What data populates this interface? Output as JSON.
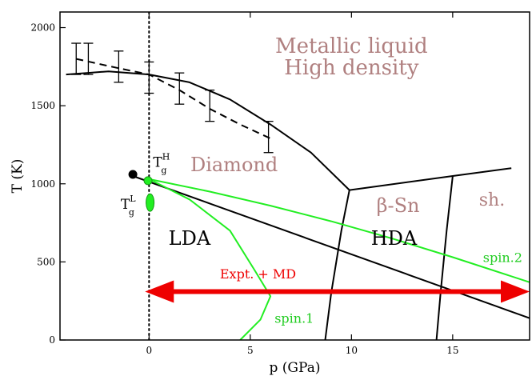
{
  "chart_data": {
    "type": "line",
    "xlabel": "p (GPa)",
    "ylabel": "T (K)",
    "xlim": [
      -4.4,
      18.8
    ],
    "ylim": [
      0,
      2100
    ],
    "x_ticks": [
      0,
      5,
      10,
      15
    ],
    "y_ticks": [
      0,
      500,
      1000,
      1500,
      2000
    ],
    "grid": false,
    "series": [
      {
        "key": "melting_solid",
        "color": "#000000",
        "dash": "solid",
        "points": [
          [
            -4.1,
            1700
          ],
          [
            -3,
            1710
          ],
          [
            -2,
            1720
          ],
          [
            0,
            1700
          ],
          [
            2,
            1650
          ],
          [
            4,
            1540
          ],
          [
            6,
            1380
          ],
          [
            8,
            1200
          ],
          [
            9.9,
            960
          ]
        ]
      },
      {
        "key": "melting_dashed",
        "color": "#000000",
        "dash": "dashed",
        "points": [
          [
            -3.6,
            1800
          ],
          [
            -1.5,
            1740
          ],
          [
            0,
            1700
          ],
          [
            1.5,
            1600
          ],
          [
            3,
            1480
          ],
          [
            4.5,
            1380
          ],
          [
            6,
            1290
          ]
        ]
      },
      {
        "key": "diamond_bsn_boundary",
        "color": "#000000",
        "dash": "solid",
        "points": [
          [
            9.9,
            960
          ],
          [
            9.5,
            700
          ],
          [
            9.0,
            300
          ],
          [
            8.7,
            0
          ]
        ]
      },
      {
        "key": "upper_boundary",
        "color": "#000000",
        "dash": "solid",
        "points": [
          [
            9.9,
            960
          ],
          [
            15,
            1050
          ],
          [
            17.9,
            1100
          ]
        ]
      },
      {
        "key": "bsn_sh_boundary",
        "color": "#000000",
        "dash": "solid",
        "points": [
          [
            15,
            1050
          ],
          [
            14.7,
            700
          ],
          [
            14.4,
            300
          ],
          [
            14.2,
            0
          ]
        ]
      },
      {
        "key": "lda_hda_boundary",
        "color": "#000000",
        "dash": "solid",
        "points": [
          [
            -0.8,
            1050
          ],
          [
            18.8,
            140
          ]
        ]
      },
      {
        "key": "spin_2",
        "color": "#22ee22",
        "dash": "solid",
        "points": [
          [
            0,
            1030
          ],
          [
            3,
            950
          ],
          [
            6,
            860
          ],
          [
            9,
            760
          ],
          [
            12,
            650
          ],
          [
            15,
            530
          ],
          [
            18.8,
            370
          ]
        ]
      },
      {
        "key": "spin_1",
        "color": "#22ee22",
        "dash": "solid",
        "points": [
          [
            0,
            1030
          ],
          [
            2,
            900
          ],
          [
            4,
            700
          ],
          [
            5.2,
            450
          ],
          [
            6,
            280
          ],
          [
            5.5,
            130
          ],
          [
            4.5,
            0
          ]
        ]
      }
    ],
    "error_bars": [
      {
        "x": -3.6,
        "y": 1800,
        "err": 100
      },
      {
        "x": -3.0,
        "y": 1800,
        "err": 100
      },
      {
        "x": -1.5,
        "y": 1750,
        "err": 100
      },
      {
        "x": 0,
        "y": 1680,
        "err": 100
      },
      {
        "x": 1.5,
        "y": 1610,
        "err": 100
      },
      {
        "x": 3,
        "y": 1500,
        "err": 100
      },
      {
        "x": 5.9,
        "y": 1300,
        "err": 100
      }
    ],
    "points": [
      {
        "key": "black_dot",
        "x": -0.8,
        "y": 1060,
        "color": "#000000",
        "r": 5
      },
      {
        "key": "green_dot",
        "x": -0.05,
        "y": 1020,
        "color": "#22ee22",
        "r": 5
      }
    ],
    "ellipse": {
      "x": 0.05,
      "y": 880,
      "color": "#22ee22"
    },
    "vline": {
      "x": 0,
      "style": "dotted"
    },
    "arrow": {
      "x1": -0.2,
      "x2": 18.8,
      "y": 310,
      "color": "#ee0000"
    },
    "labels": {
      "metallic_liquid": {
        "text": "Metallic liquid",
        "x": 10,
        "y": 1840,
        "color": "#b08080",
        "size": 26
      },
      "high_density": {
        "text": "High density",
        "x": 10,
        "y": 1700,
        "color": "#b08080",
        "size": 26
      },
      "diamond": {
        "text": "Diamond",
        "x": 4.2,
        "y": 1080,
        "color": "#b08080",
        "size": 24
      },
      "beta_sn": {
        "text": "β-Sn",
        "x": 12.3,
        "y": 820,
        "color": "#b08080",
        "size": 24
      },
      "sh": {
        "text": "sh.",
        "x": 16.3,
        "y": 860,
        "color": "#b08080",
        "size": 22
      },
      "lda": {
        "text": "LDA",
        "x": 2,
        "y": 610,
        "color": "#000000",
        "size": 24
      },
      "hda": {
        "text": "HDA",
        "x": 12.1,
        "y": 610,
        "color": "#000000",
        "size": 24
      },
      "spin2": {
        "text": "spin.2",
        "x": 16.5,
        "y": 500,
        "color": "#22cc22",
        "size": 16
      },
      "spin1": {
        "text": "spin.1",
        "x": 6.2,
        "y": 110,
        "color": "#22cc22",
        "size": 16
      },
      "expt": {
        "text": "Expt. + MD",
        "x": 3.5,
        "y": 395,
        "color": "#ee0000",
        "size": 16
      },
      "tg_h": {
        "text": "T",
        "sup": "H",
        "sub": "g",
        "x": 0.2,
        "y": 1110,
        "color": "#000000",
        "size": 17
      },
      "tg_l": {
        "text": "T",
        "sup": "L",
        "sub": "g",
        "x": -1.4,
        "y": 840,
        "color": "#000000",
        "size": 17
      }
    }
  }
}
